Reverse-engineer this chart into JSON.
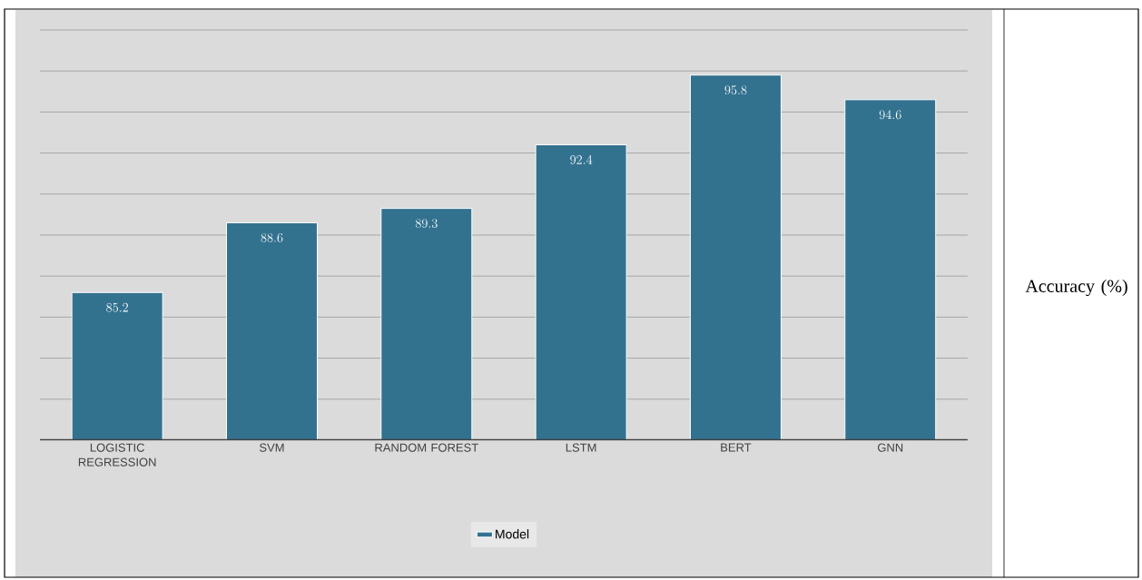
{
  "chart_data": {
    "type": "bar",
    "annotations": [
      "Accuracy (%)"
    ],
    "categories": [
      "LOGISTIC REGRESSION",
      "SVM",
      "RANDOM FOREST",
      "LSTM",
      "BERT",
      "GNN"
    ],
    "series": [
      {
        "name": "Model",
        "color": "#33728f",
        "values": [
          85.2,
          88.6,
          89.3,
          92.4,
          95.8,
          94.6
        ]
      }
    ],
    "ylim": [
      78,
      98
    ],
    "yticks": [
      {
        "value": 78,
        "label": null
      },
      {
        "value": 80,
        "label": null
      },
      {
        "value": 82,
        "label": null
      },
      {
        "value": 84,
        "label": null
      },
      {
        "value": 86,
        "label": null
      },
      {
        "value": 88,
        "label": null
      },
      {
        "value": 90,
        "label": null
      },
      {
        "value": 92,
        "label": null
      },
      {
        "value": 94,
        "label": null
      },
      {
        "value": 96,
        "label": null
      },
      {
        "value": 98,
        "label": null
      }
    ],
    "grid": "y",
    "legend": "bottom",
    "data_labels": true,
    "tick_labels": "x"
  }
}
